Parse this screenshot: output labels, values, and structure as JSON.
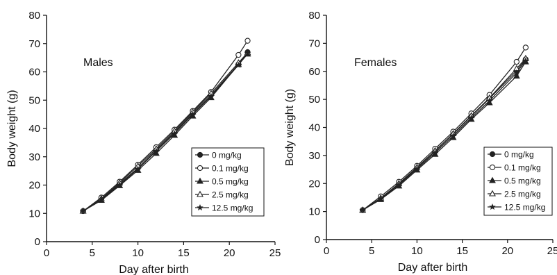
{
  "chart_data": [
    {
      "type": "line",
      "title": "Males",
      "xlabel": "Day after birth",
      "ylabel": "Body weight (g)",
      "xlim": [
        0,
        25
      ],
      "ylim": [
        0,
        80
      ],
      "xticks": [
        0,
        5,
        10,
        15,
        20,
        25
      ],
      "yticks": [
        0,
        10,
        20,
        30,
        40,
        50,
        60,
        70,
        80
      ],
      "grid": false,
      "legend_position": "lower-right",
      "x": [
        4,
        6,
        8,
        10,
        12,
        14,
        16,
        18,
        21,
        22
      ],
      "series": [
        {
          "name": "0 mg/kg",
          "marker": "filled-circle",
          "values": [
            10.8,
            15.0,
            20.4,
            26.0,
            32.3,
            38.6,
            45.3,
            51.8,
            62.7,
            67.0
          ]
        },
        {
          "name": "0.1 mg/kg",
          "marker": "open-circle",
          "values": [
            10.8,
            15.6,
            21.2,
            27.2,
            33.4,
            39.6,
            46.2,
            52.9,
            66.0,
            71.0
          ]
        },
        {
          "name": "0.5 mg/kg",
          "marker": "filled-triangle",
          "values": [
            10.8,
            14.6,
            19.8,
            25.2,
            31.2,
            37.6,
            44.4,
            50.9,
            62.6,
            66.3
          ]
        },
        {
          "name": "2.5 mg/kg",
          "marker": "open-triangle",
          "values": [
            10.8,
            15.2,
            20.8,
            26.7,
            32.8,
            39.1,
            45.8,
            52.4,
            63.2,
            66.8
          ]
        },
        {
          "name": "12.5 mg/kg",
          "marker": "star",
          "values": [
            10.8,
            14.9,
            20.1,
            25.7,
            32.0,
            38.2,
            45.0,
            51.4,
            62.4,
            66.6
          ]
        }
      ]
    },
    {
      "type": "line",
      "title": "Females",
      "xlabel": "Day after birth",
      "ylabel": "Body weight (g)",
      "xlim": [
        0,
        25
      ],
      "ylim": [
        0,
        80
      ],
      "xticks": [
        0,
        5,
        10,
        15,
        20,
        25
      ],
      "yticks": [
        0,
        10,
        20,
        30,
        40,
        50,
        60,
        70,
        80
      ],
      "grid": false,
      "legend_position": "lower-right",
      "x": [
        4,
        6,
        8,
        10,
        12,
        14,
        16,
        18,
        21,
        22
      ],
      "series": [
        {
          "name": "0 mg/kg",
          "marker": "filled-circle",
          "values": [
            10.5,
            14.6,
            19.8,
            25.6,
            31.5,
            37.6,
            44.0,
            50.3,
            60.2,
            64.3
          ]
        },
        {
          "name": "0.1 mg/kg",
          "marker": "open-circle",
          "values": [
            10.5,
            15.4,
            20.6,
            26.3,
            32.4,
            38.5,
            45.0,
            51.6,
            63.4,
            68.5
          ]
        },
        {
          "name": "0.5 mg/kg",
          "marker": "filled-triangle",
          "values": [
            10.5,
            14.3,
            19.1,
            24.8,
            30.4,
            36.4,
            42.9,
            48.8,
            58.3,
            63.4
          ]
        },
        {
          "name": "2.5 mg/kg",
          "marker": "open-triangle",
          "values": [
            10.5,
            14.8,
            20.0,
            25.8,
            31.7,
            37.8,
            44.2,
            50.5,
            61.0,
            64.6
          ]
        },
        {
          "name": "12.5 mg/kg",
          "marker": "star",
          "values": [
            10.5,
            14.5,
            19.5,
            25.2,
            31.0,
            37.0,
            43.4,
            49.5,
            59.5,
            63.8
          ]
        }
      ]
    }
  ],
  "colors": {
    "line": "#222222",
    "axis": "#111111",
    "background": "#ffffff"
  }
}
